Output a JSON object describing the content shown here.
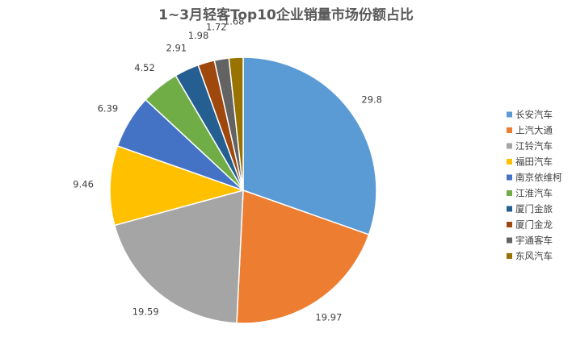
{
  "chart_data": {
    "type": "pie",
    "title": "1~3月轻客Top10企业销量市场份额占比",
    "categories": [
      "长安汽车",
      "上汽大通",
      "江铃汽车",
      "福田汽车",
      "南京依维柯",
      "江淮汽车",
      "厦门金旅",
      "厦门金龙",
      "宇通客车",
      "东风汽车"
    ],
    "values": [
      29.8,
      19.97,
      19.59,
      9.46,
      6.39,
      4.52,
      2.91,
      1.98,
      1.72,
      1.68
    ],
    "value_labels": [
      "29.8",
      "19.97",
      "19.59",
      "9.46",
      "6.39",
      "4.52",
      "2.91",
      "1.98",
      "1.72",
      "1.68"
    ],
    "colors": [
      "#5B9BD5",
      "#ED7D31",
      "#A5A5A5",
      "#FFC000",
      "#4472C4",
      "#70AD47",
      "#255E91",
      "#9E480E",
      "#636363",
      "#997300"
    ],
    "legend_position": "right",
    "start_angle": "12 o'clock",
    "direction": "clockwise"
  }
}
